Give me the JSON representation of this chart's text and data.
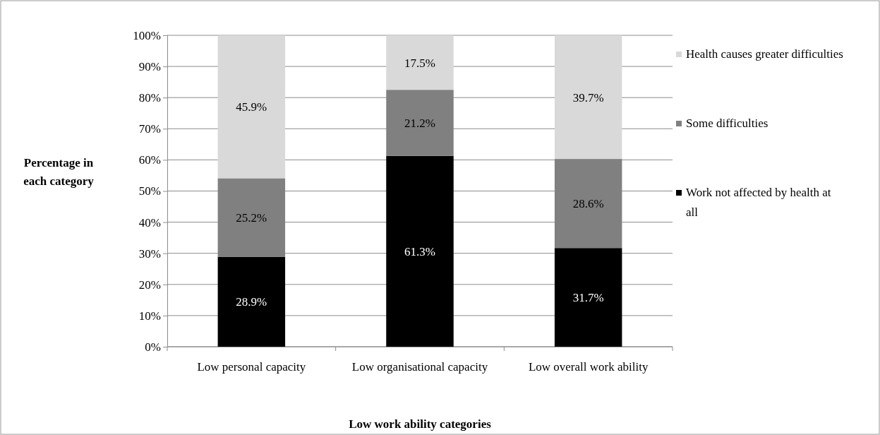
{
  "chart_data": {
    "type": "bar",
    "stacked": true,
    "xlabel": "Low work ability categories",
    "ylabel": "Percentage in each category",
    "categories": [
      "Low personal capacity",
      "Low organisational capacity",
      "Low overall work ability"
    ],
    "series": [
      {
        "name": "Work not affected by health at all",
        "color": "#000000",
        "values": [
          28.9,
          61.3,
          31.7
        ],
        "value_labels": [
          "28.9%",
          "61.3%",
          "31.7%"
        ]
      },
      {
        "name": "Some difficulties",
        "color": "#808080",
        "values": [
          25.2,
          21.2,
          28.6
        ],
        "value_labels": [
          "25.2%",
          "21.2%",
          "28.6%"
        ]
      },
      {
        "name": "Health causes greater difficulties",
        "color": "#d9d9d9",
        "values": [
          45.9,
          17.5,
          39.7
        ],
        "value_labels": [
          "45.9%",
          "17.5%",
          "39.7%"
        ]
      }
    ],
    "ylim": [
      0,
      100
    ],
    "yticks": [
      {
        "value": 0,
        "label": "0%"
      },
      {
        "value": 10,
        "label": "10%"
      },
      {
        "value": 20,
        "label": "20%"
      },
      {
        "value": 30,
        "label": "30%"
      },
      {
        "value": 40,
        "label": "40%"
      },
      {
        "value": 50,
        "label": "50%"
      },
      {
        "value": 60,
        "label": "60%"
      },
      {
        "value": 70,
        "label": "70%"
      },
      {
        "value": 80,
        "label": "80%"
      },
      {
        "value": 90,
        "label": "90%"
      },
      {
        "value": 100,
        "label": "100%"
      }
    ],
    "grid": "y",
    "legend": "right"
  }
}
